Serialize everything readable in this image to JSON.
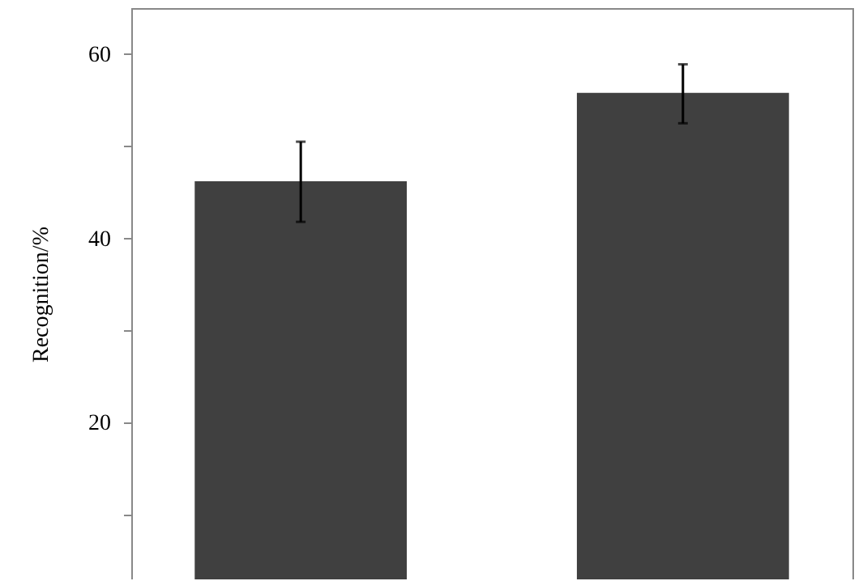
{
  "chart_data": {
    "type": "bar",
    "ylabel": "Recognition/%",
    "categories": [
      null,
      null
    ],
    "values": [
      46.2,
      55.8
    ],
    "errors": [
      [
        41.8,
        50.5
      ],
      [
        52.5,
        58.9
      ]
    ],
    "color": "#404040",
    "ylim": [
      3,
      65
    ],
    "yticks": [
      {
        "value": 10,
        "label": null
      },
      20,
      {
        "value": 30,
        "label": null
      },
      40,
      {
        "value": 50,
        "label": null
      },
      60
    ],
    "grid": false
  }
}
